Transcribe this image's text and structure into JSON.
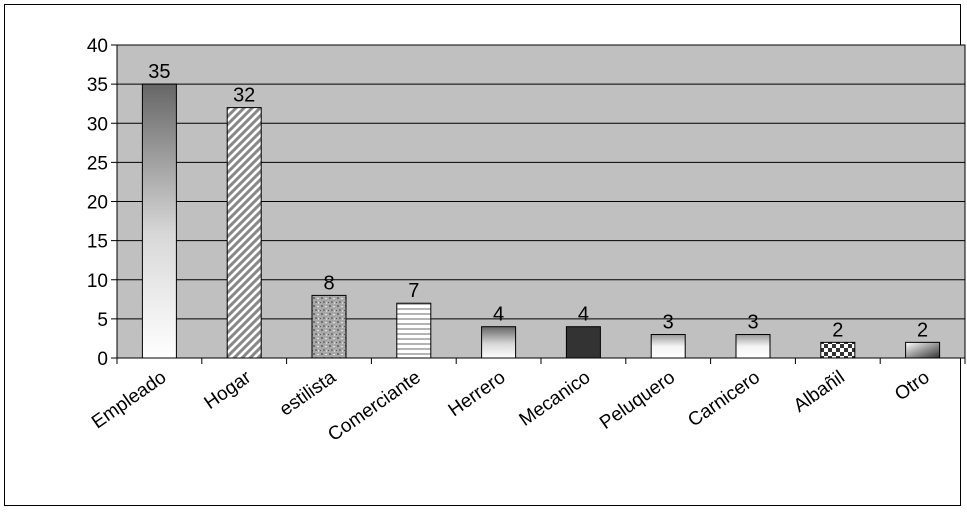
{
  "chart_data": {
    "type": "bar",
    "title": "",
    "xlabel": "",
    "ylabel": "",
    "categories": [
      "Empleado",
      "Hogar",
      "estilista",
      "Comerciante",
      "Herrero",
      "Mecanico",
      "Peluquero",
      "Carnicero",
      "Albañil",
      "Otro"
    ],
    "values": [
      35,
      32,
      8,
      7,
      4,
      4,
      3,
      3,
      2,
      2
    ],
    "data_labels": [
      "35",
      "32",
      "8",
      "7",
      "4",
      "4",
      "3",
      "3",
      "2",
      "2"
    ],
    "ylim": [
      0,
      40
    ],
    "yticks": [
      "0",
      "5",
      "10",
      "15",
      "20",
      "25",
      "30",
      "35",
      "40"
    ],
    "grid": "horizontal",
    "legend": "none",
    "plot_background": "#c0c0c0",
    "bar_styles": [
      "gradient-dark-top",
      "diagonal-stripes",
      "granite",
      "horizontal-stripes",
      "gradient-dark-top",
      "solid-dark",
      "gradient-light",
      "gradient-light",
      "checker",
      "gradient-dark-left"
    ]
  }
}
